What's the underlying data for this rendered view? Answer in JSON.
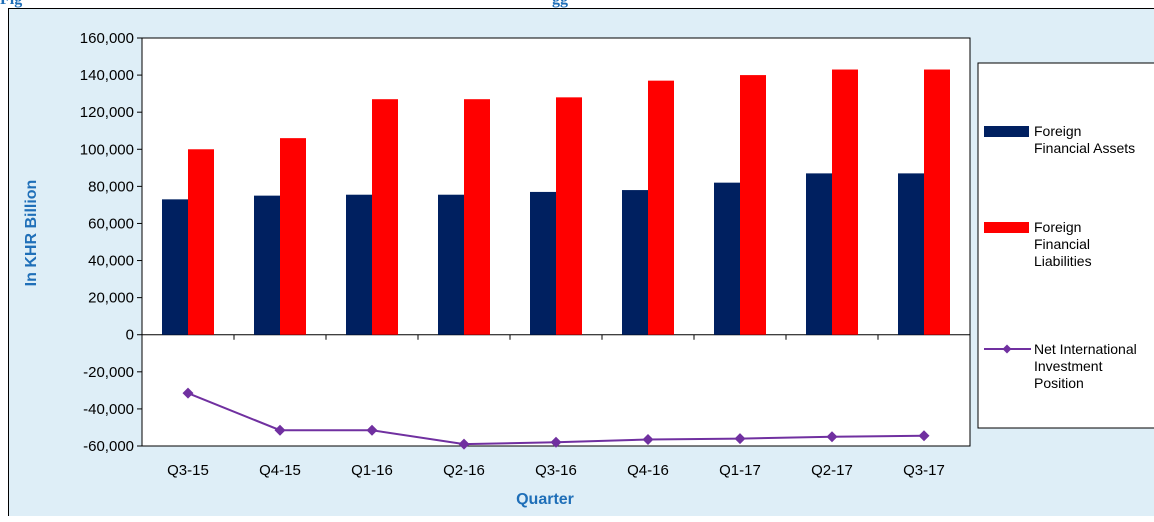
{
  "header": {
    "title_fragment": "Fig",
    "title_tail": "gg"
  },
  "chart_data": {
    "type": "bar",
    "categories": [
      "Q3-15",
      "Q4-15",
      "Q1-16",
      "Q2-16",
      "Q3-16",
      "Q4-16",
      "Q1-17",
      "Q2-17",
      "Q3-17"
    ],
    "series": [
      {
        "name": "Foreign Financial Assets",
        "type": "bar",
        "color": "#002060",
        "values": [
          73000,
          75000,
          75500,
          75500,
          77000,
          78000,
          82000,
          87000,
          87000
        ]
      },
      {
        "name": "Foreign Financial Liabilities",
        "type": "bar",
        "color": "#ff0000",
        "values": [
          100000,
          106000,
          127000,
          127000,
          128000,
          137000,
          140000,
          143000,
          143000
        ]
      },
      {
        "name": "Net International Investment Position",
        "type": "line",
        "color": "#7030a0",
        "values": [
          -31500,
          -51500,
          -51500,
          -59000,
          -58000,
          -56500,
          -56000,
          -55000,
          -54500
        ]
      }
    ],
    "ylabel": "In KHR Billion",
    "xlabel": "Quarter",
    "ylim": [
      -60000,
      160000
    ],
    "yticks": [
      160000,
      140000,
      120000,
      100000,
      80000,
      60000,
      40000,
      20000,
      0,
      -20000,
      -40000,
      -60000
    ],
    "ytick_labels": [
      "160,000",
      "140,000",
      "120,000",
      "100,000",
      "80,000",
      "60,000",
      "40,000",
      "20,000",
      "0",
      "-20,000",
      "-40,000",
      "-60,000"
    ],
    "legend_labels": [
      [
        "Foreign",
        "Financial Assets"
      ],
      [
        "Foreign",
        "Financial",
        "Liabilities"
      ],
      [
        "Net International",
        "Investment",
        "Position"
      ]
    ],
    "legend_position": "right",
    "grid": false
  }
}
